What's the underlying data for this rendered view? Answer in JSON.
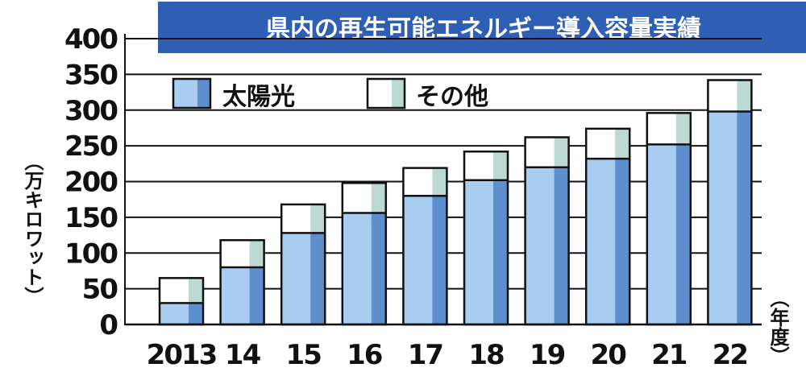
{
  "chart_data": {
    "type": "bar",
    "stacked": true,
    "title": "県内の再生可能エネルギー導入容量実績",
    "ylabel": "（万キロワット）",
    "xlabel": "（年度）",
    "ylim": [
      0,
      400
    ],
    "yticks": [
      "0",
      "50",
      "100",
      "150",
      "200",
      "250",
      "300",
      "350",
      "400"
    ],
    "categories": [
      "2013",
      "14",
      "15",
      "16",
      "17",
      "18",
      "19",
      "20",
      "21",
      "22"
    ],
    "series": [
      {
        "name": "太陽光",
        "values": [
          30,
          80,
          128,
          156,
          180,
          202,
          220,
          232,
          252,
          298
        ]
      },
      {
        "name": "その他",
        "values": [
          35,
          38,
          40,
          42,
          39,
          40,
          42,
          42,
          44,
          44
        ]
      }
    ],
    "grid": true,
    "legend": "top-left"
  },
  "colors": {
    "title_bg": "#2f5fb4",
    "solar_light": "#a9ccf1",
    "solar_dark": "#5d8fcf",
    "other_light": "#ffffff",
    "other_dark": "#bcd9d4",
    "outline": "#111111",
    "grid": "#111111"
  }
}
